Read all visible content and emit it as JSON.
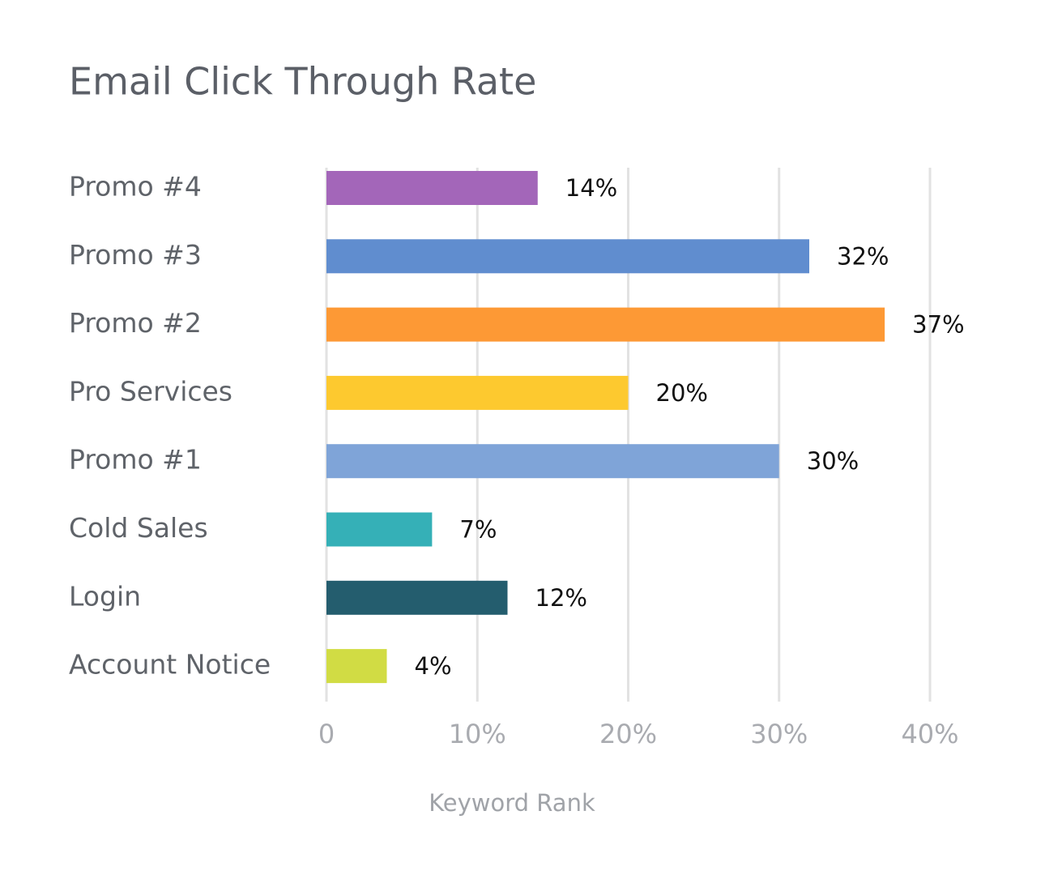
{
  "chart_data": {
    "type": "barh",
    "title": "Email Click Through Rate",
    "categories": [
      "Promo #4",
      "Promo #3",
      "Promo #2",
      "Pro Services",
      "Promo #1",
      "Cold Sales",
      "Login",
      "Account Notice"
    ],
    "values": [
      14,
      32,
      37,
      20,
      30,
      7,
      12,
      4
    ],
    "value_labels": [
      "14%",
      "32%",
      "37%",
      "20%",
      "30%",
      "7%",
      "12%",
      "4%"
    ],
    "colors": [
      "#a366b9",
      "#608dcf",
      "#fd9935",
      "#fdc92f",
      "#7fa4d8",
      "#35b0b7",
      "#245d6e",
      "#d1dc44"
    ],
    "xlabel": "Keyword Rank",
    "xlim": [
      0,
      40
    ],
    "xticks": [
      0,
      {
        "value": 10,
        "label": "10%"
      },
      {
        "value": 20,
        "label": "20%"
      },
      {
        "value": 30,
        "label": "30%"
      },
      {
        "value": 40,
        "label": "40%"
      }
    ],
    "grid": true
  }
}
